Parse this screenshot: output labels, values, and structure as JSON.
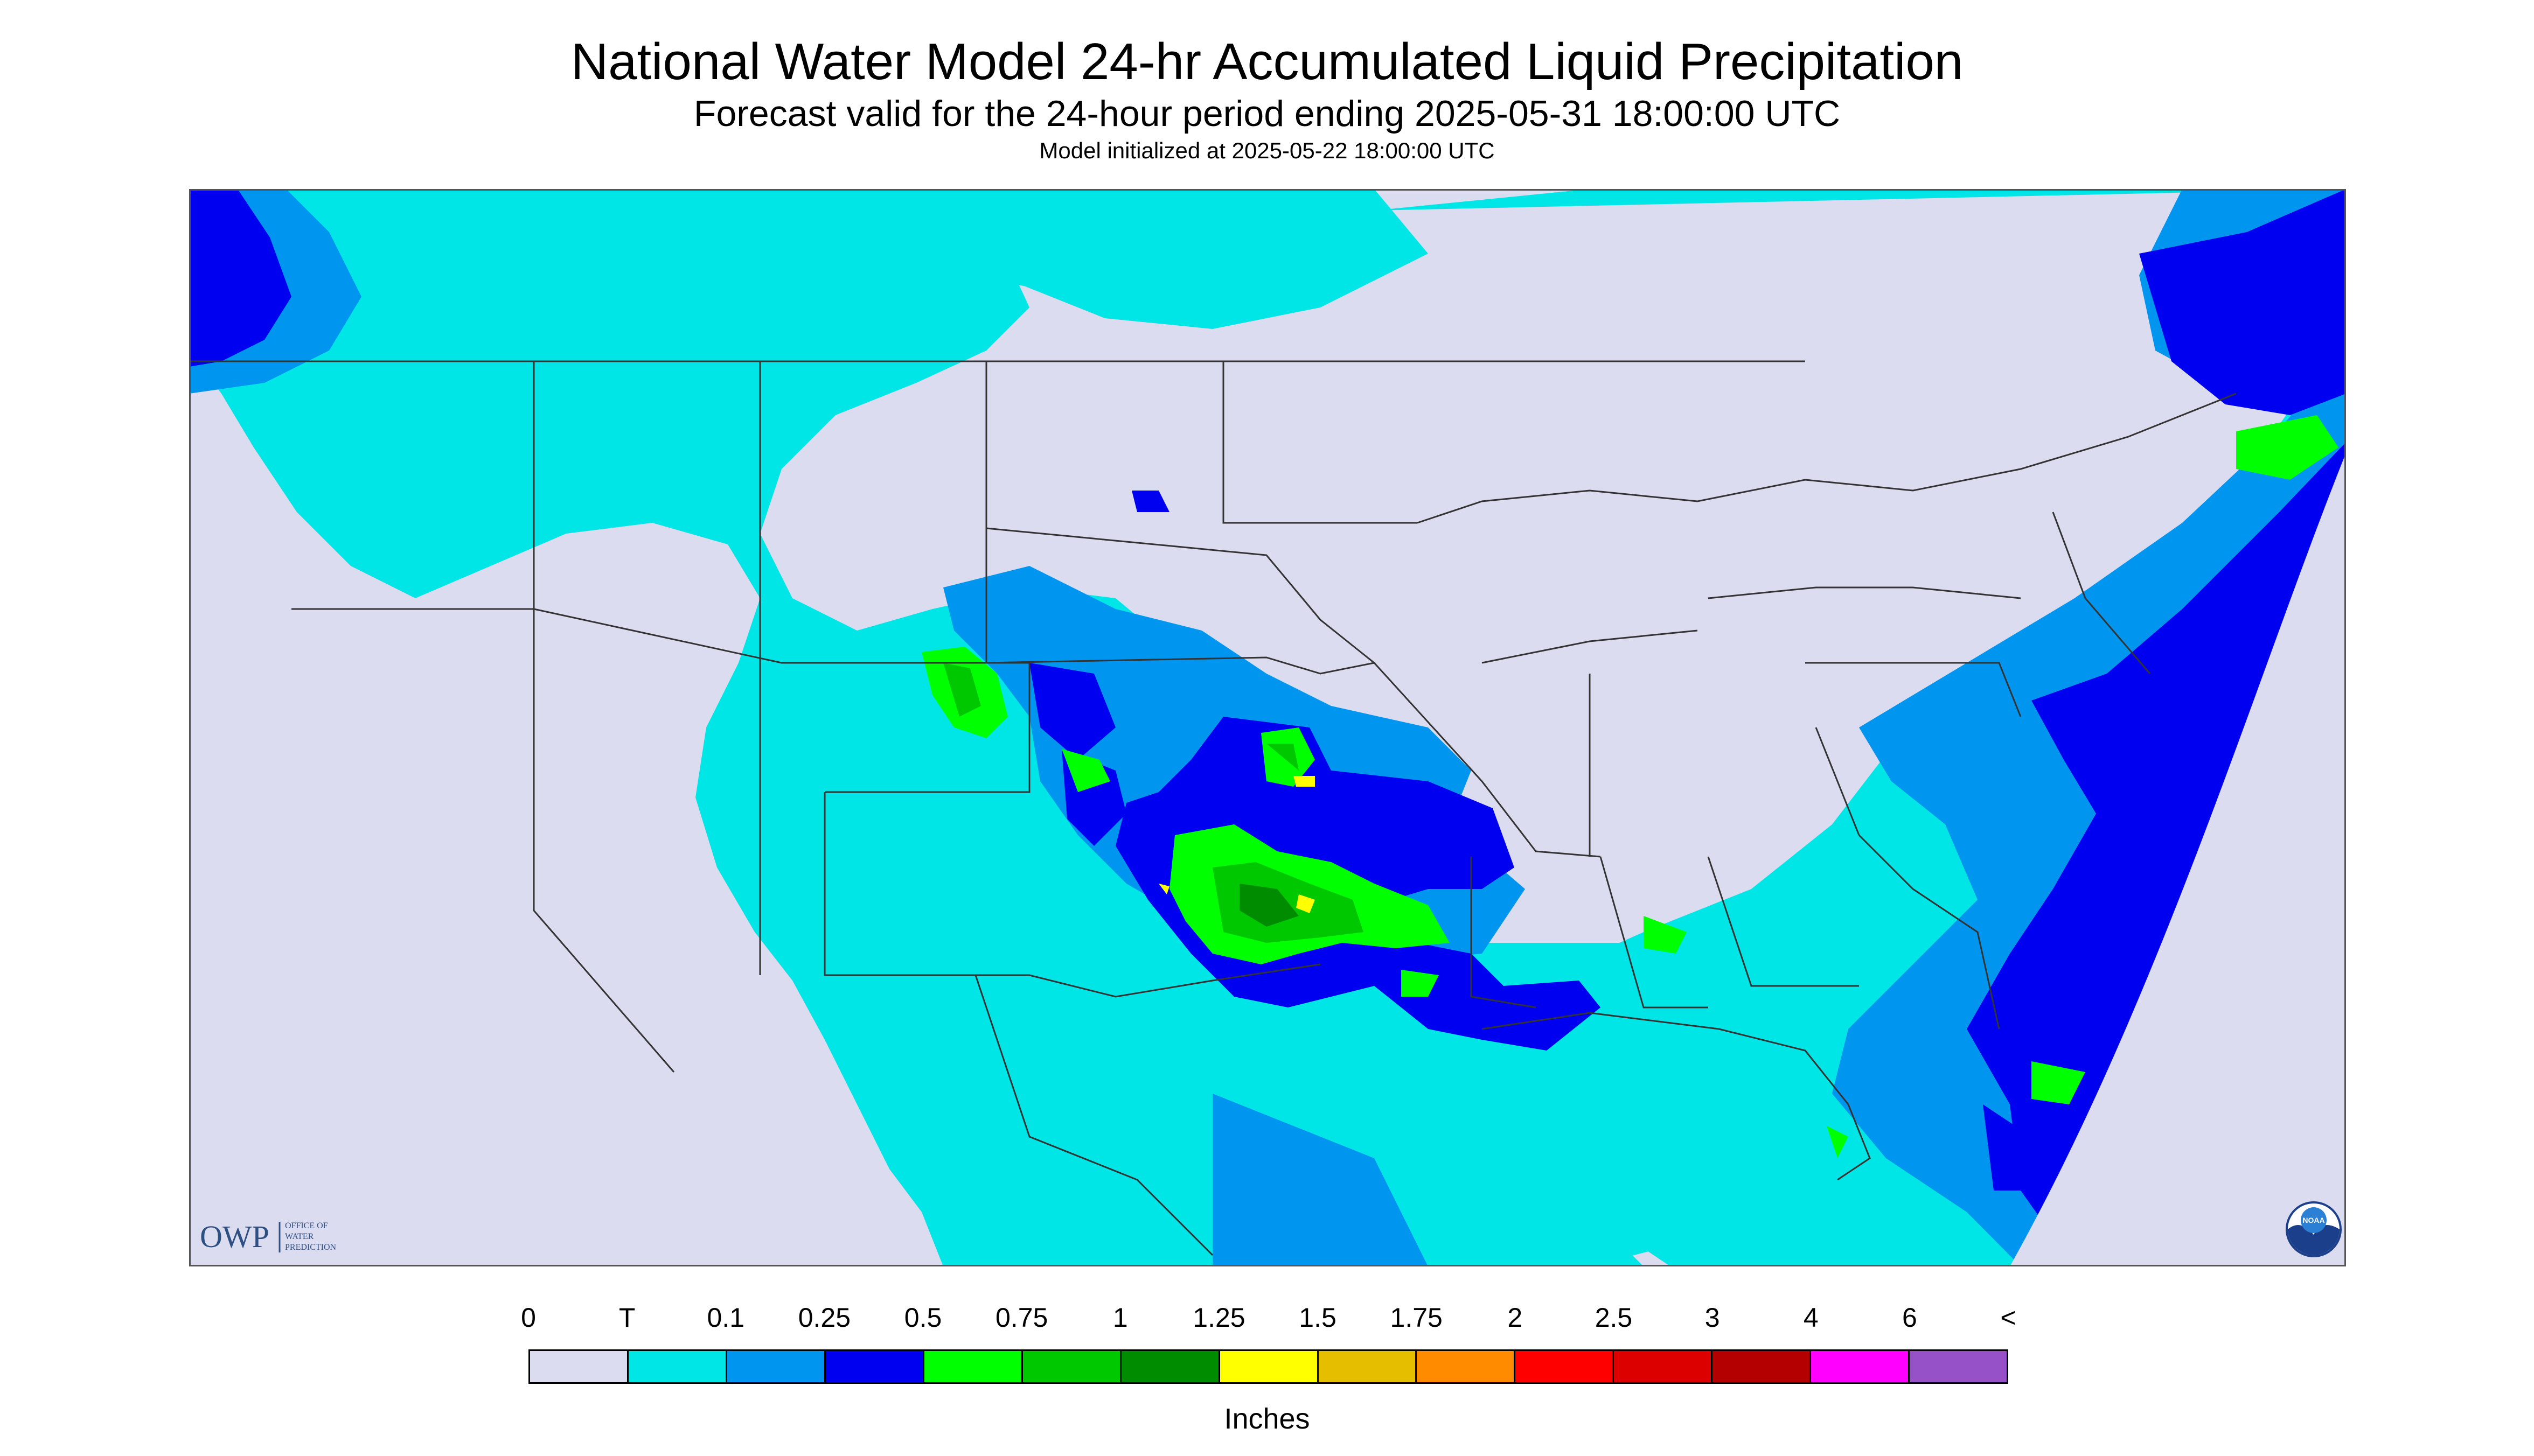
{
  "header": {
    "title": "National Water Model 24-hr Accumulated Liquid Precipitation",
    "subtitle": "Forecast valid for the 24-hour period ending 2025-05-31 18:00:00 UTC",
    "init_line": "Model initialized at 2025-05-22 18:00:00 UTC"
  },
  "logos": {
    "owp_mark": "OWP",
    "owp_text": [
      "OFFICE OF",
      "WATER",
      "PREDICTION"
    ],
    "noaa_text": "NOAA"
  },
  "legend": {
    "labels": [
      "0",
      "T",
      "0.1",
      "0.25",
      "0.5",
      "0.75",
      "1",
      "1.25",
      "1.5",
      "1.75",
      "2",
      "2.5",
      "3",
      "4",
      "6",
      "<"
    ],
    "colors": [
      "#dcdcf0",
      "#00e6e6",
      "#0096f0",
      "#0000f0",
      "#00ff00",
      "#00c800",
      "#008c00",
      "#ffff00",
      "#e6be00",
      "#ff8c00",
      "#ff0000",
      "#dc0000",
      "#b40000",
      "#ff00ff",
      "#9650c8"
    ],
    "units": "Inches"
  },
  "map_colors": {
    "background": "#dcdcf0",
    "trace": "#00e6e6",
    "light": "#0096f0",
    "moderate": "#0000f0",
    "green": "#00ff00",
    "green_mid": "#00c800",
    "green_dark": "#008c00",
    "yellow": "#ffff00",
    "border_line": "#333333"
  }
}
